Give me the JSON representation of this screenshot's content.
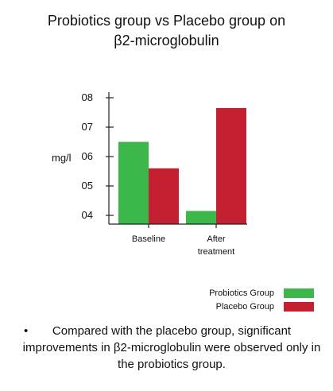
{
  "chart_data": {
    "type": "bar",
    "title": "Probiotics group vs Placebo group on β2-microglobulin",
    "title_lines": [
      "Probiotics group vs Placebo group on",
      "β2-microglobulin"
    ],
    "ylabel": "mg/l",
    "xlabel": "",
    "categories": [
      "Baseline",
      "After treatment"
    ],
    "category_lines": [
      [
        "Baseline"
      ],
      [
        "After",
        "treatment"
      ]
    ],
    "yticks": [
      "08",
      "07",
      "06",
      "05",
      "04"
    ],
    "ytick_values": [
      8,
      7,
      6,
      5,
      4
    ],
    "ylim": [
      3.7,
      8.2
    ],
    "grid": false,
    "legend_position": "bottom-right",
    "series": [
      {
        "name": "Probiotics Group",
        "color": "#3cb84a",
        "values": [
          6.5,
          4.15
        ]
      },
      {
        "name": "Placebo Group",
        "color": "#c42032",
        "values": [
          5.6,
          7.65
        ]
      }
    ]
  },
  "note": {
    "bullet": "•",
    "text": "Compared with the placebo group, significant improvements in β2-microglobulin were observed only in the probiotics group."
  }
}
